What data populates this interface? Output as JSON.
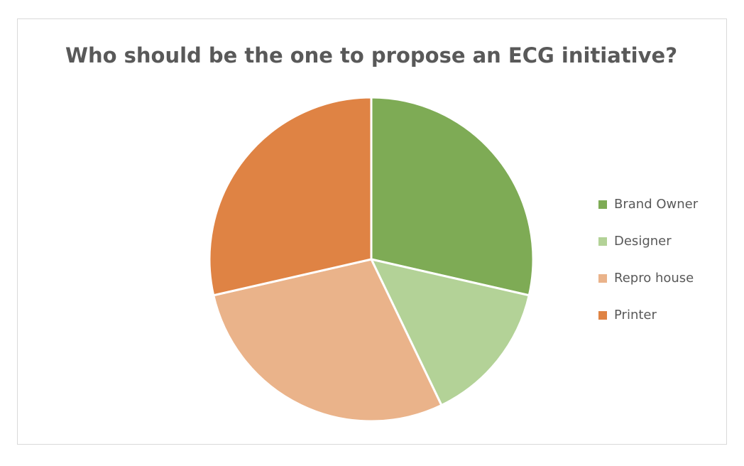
{
  "chart_data": {
    "type": "pie",
    "title": "Who should be the one to propose an ECG initiative?",
    "categories": [
      "Brand Owner",
      "Designer",
      "Repro house",
      "Printer"
    ],
    "values": [
      2,
      1,
      2,
      2
    ],
    "colors": [
      "#7eab55",
      "#b3d297",
      "#eab38a",
      "#df8344"
    ],
    "legend": "right"
  }
}
